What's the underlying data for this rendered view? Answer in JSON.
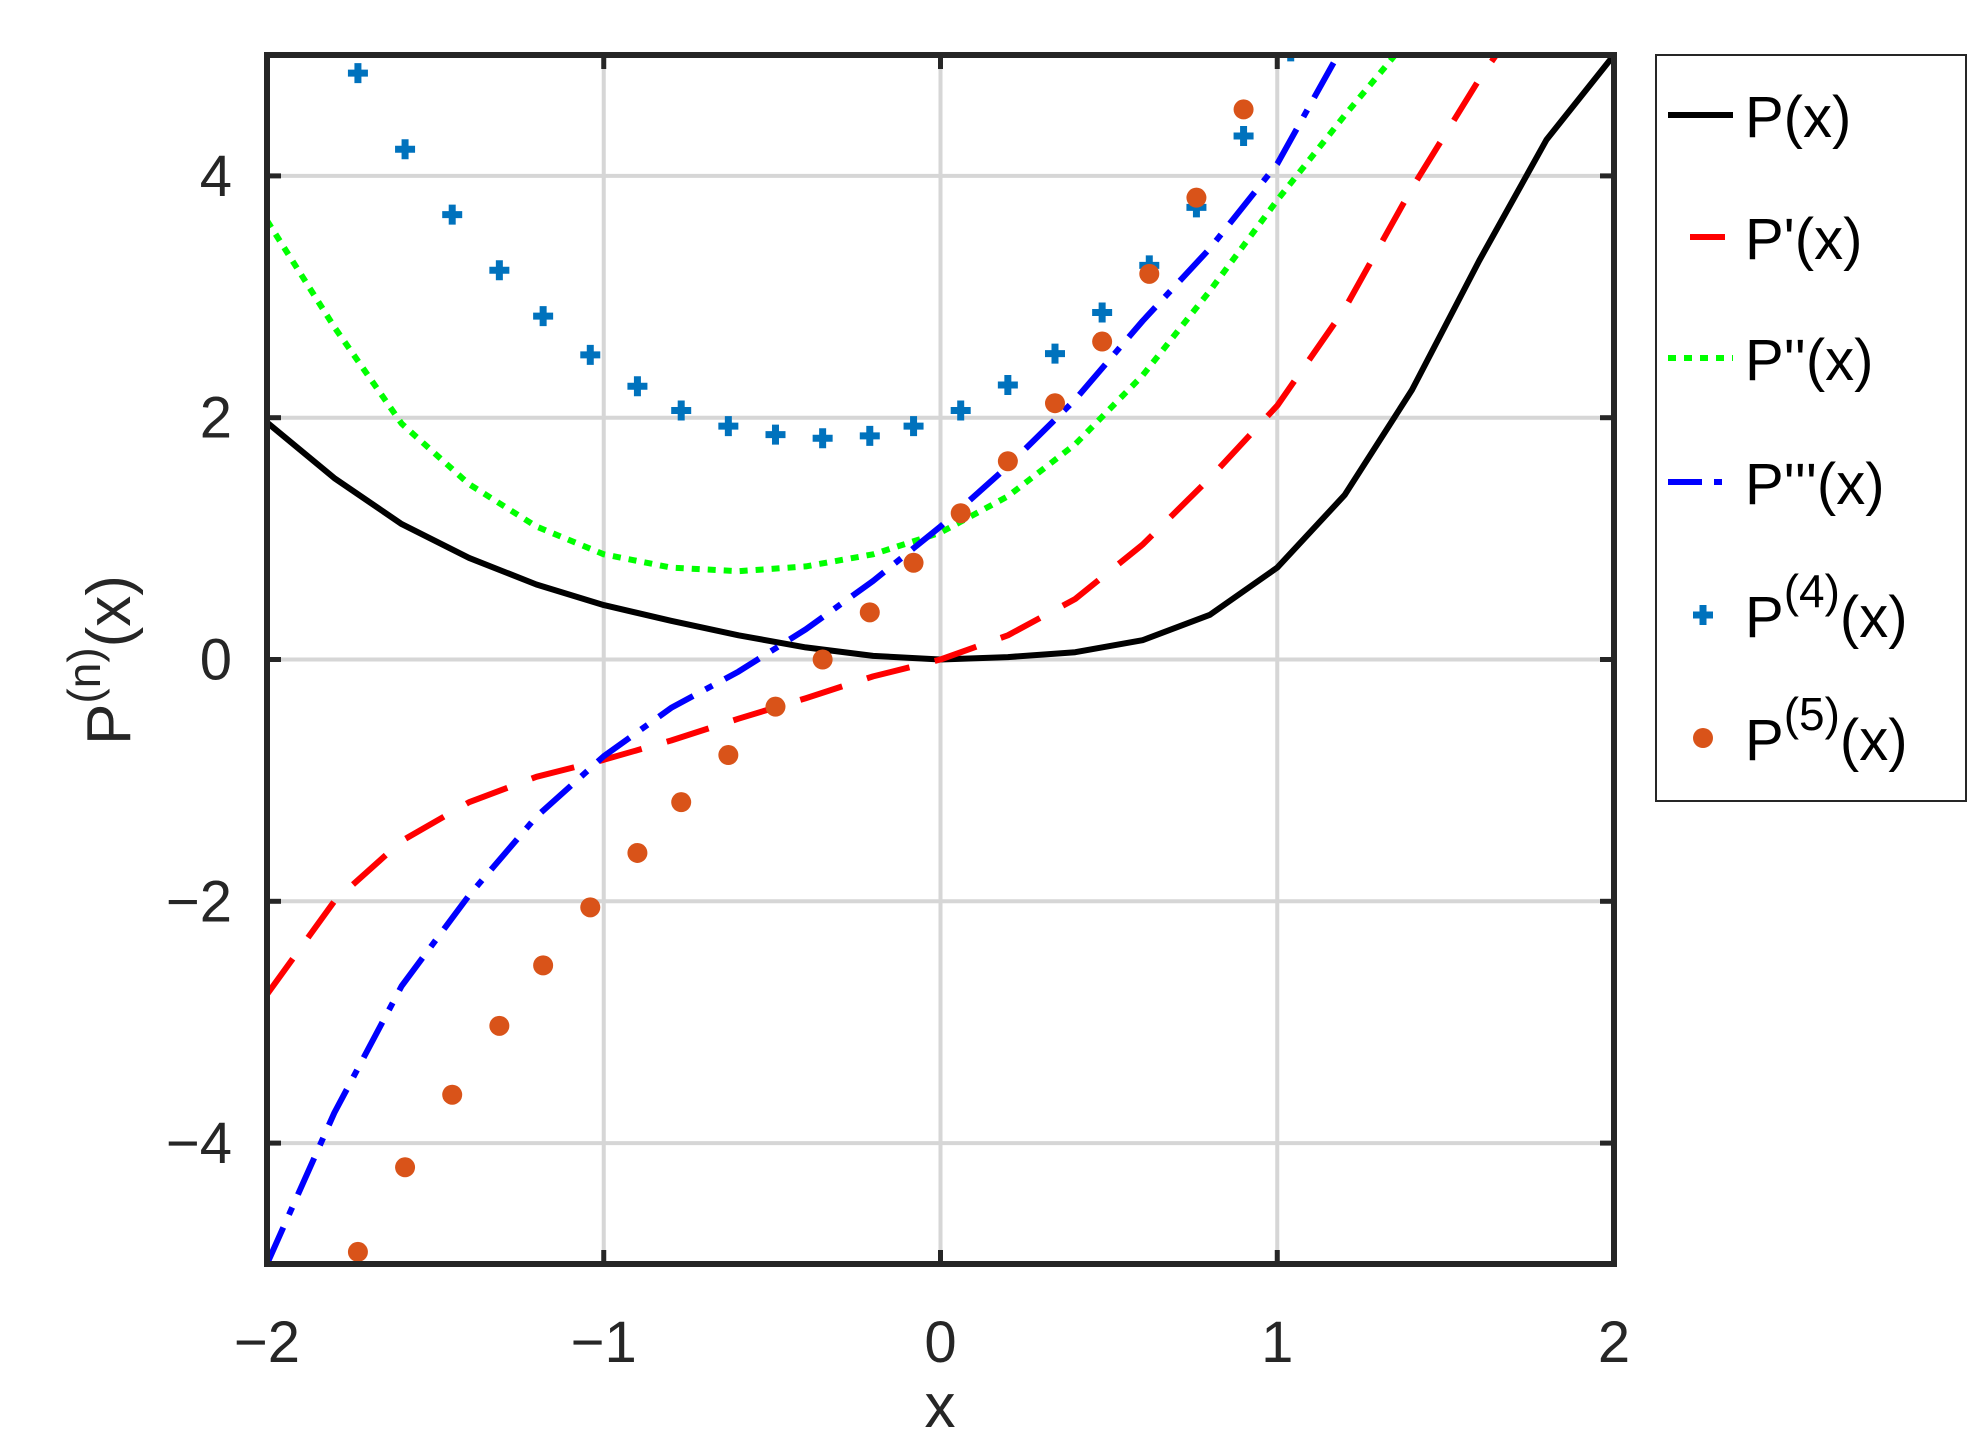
{
  "chart_data": {
    "type": "line",
    "title": "",
    "xlabel": "x",
    "ylabel": {
      "base": "P",
      "sup": "(n)",
      "tail": "(x)"
    },
    "xlim": [
      -2,
      2
    ],
    "ylim": [
      -5,
      5
    ],
    "xticks": [
      -2,
      -1,
      0,
      1,
      2
    ],
    "yticks": [
      -4,
      -2,
      0,
      2,
      4
    ],
    "xtick_labels": [
      "−2",
      "−1",
      "0",
      "1",
      "2"
    ],
    "ytick_labels": [
      "−4",
      "−2",
      "0",
      "2",
      "4"
    ],
    "grid": true,
    "legend_position": "outside-right",
    "series": [
      {
        "name": "P(x)",
        "color": "#000000",
        "style": "solid",
        "marker": "none",
        "x": [
          -2,
          -1.8,
          -1.6,
          -1.4,
          -1.2,
          -1,
          -0.8,
          -0.6,
          -0.4,
          -0.2,
          0,
          0.2,
          0.4,
          0.6,
          0.8,
          1,
          1.2,
          1.4,
          1.6,
          1.8,
          2
        ],
        "y": [
          1.96,
          1.5,
          1.12,
          0.84,
          0.62,
          0.45,
          0.32,
          0.2,
          0.1,
          0.03,
          0,
          0.02,
          0.06,
          0.16,
          0.37,
          0.76,
          1.36,
          2.23,
          3.3,
          4.3,
          5
        ]
      },
      {
        "name": "P'(x)",
        "color": "#ff0000",
        "style": "dashed",
        "marker": "none",
        "x": [
          -2,
          -1.8,
          -1.6,
          -1.4,
          -1.2,
          -1,
          -0.8,
          -0.6,
          -0.4,
          -0.2,
          0,
          0.2,
          0.4,
          0.6,
          0.8,
          1,
          1.2,
          1.4,
          1.6,
          1.65
        ],
        "y": [
          -2.77,
          -2.0,
          -1.5,
          -1.18,
          -0.97,
          -0.83,
          -0.67,
          -0.49,
          -0.32,
          -0.14,
          0,
          0.2,
          0.5,
          0.95,
          1.5,
          2.1,
          2.9,
          3.9,
          4.8,
          5
        ]
      },
      {
        "name": "P''(x)",
        "color": "#00ff00",
        "style": "dotted",
        "marker": "none",
        "x": [
          -2,
          -1.8,
          -1.6,
          -1.4,
          -1.2,
          -1,
          -0.8,
          -0.6,
          -0.4,
          -0.2,
          0,
          0.2,
          0.4,
          0.6,
          0.8,
          1,
          1.2,
          1.35
        ],
        "y": [
          3.63,
          2.75,
          1.95,
          1.45,
          1.1,
          0.87,
          0.76,
          0.73,
          0.77,
          0.87,
          1.05,
          1.35,
          1.78,
          2.35,
          3.05,
          3.8,
          4.5,
          5
        ]
      },
      {
        "name": "P'''(x)",
        "color": "#0000ff",
        "style": "dashdot",
        "marker": "none",
        "x": [
          -2,
          -1.8,
          -1.6,
          -1.4,
          -1.2,
          -1,
          -0.8,
          -0.6,
          -0.4,
          -0.2,
          0,
          0.2,
          0.4,
          0.6,
          0.8,
          1,
          1.18
        ],
        "y": [
          -5,
          -3.75,
          -2.7,
          -1.95,
          -1.3,
          -0.8,
          -0.4,
          -0.1,
          0.25,
          0.65,
          1.1,
          1.6,
          2.15,
          2.8,
          3.4,
          4.1,
          5
        ]
      },
      {
        "name": "P(4)(x)",
        "label": {
          "base": "P",
          "sup": "(4)",
          "tail": "(x)"
        },
        "color": "#0072bd",
        "style": "none",
        "marker": "plus",
        "x": [
          -1.73,
          -1.59,
          -1.45,
          -1.31,
          -1.18,
          -1.04,
          -0.9,
          -0.77,
          -0.63,
          -0.49,
          -0.35,
          -0.21,
          -0.08,
          0.06,
          0.2,
          0.34,
          0.48,
          0.62,
          0.76,
          0.9,
          1.04
        ],
        "y": [
          4.85,
          4.22,
          3.68,
          3.22,
          2.84,
          2.52,
          2.26,
          2.06,
          1.93,
          1.86,
          1.83,
          1.85,
          1.93,
          2.06,
          2.27,
          2.53,
          2.87,
          3.26,
          3.74,
          4.33,
          5.03
        ]
      },
      {
        "name": "P(5)(x)",
        "label": {
          "base": "P",
          "sup": "(5)",
          "tail": "(x)"
        },
        "color": "#d95319",
        "style": "none",
        "marker": "dot",
        "x": [
          -1.73,
          -1.59,
          -1.45,
          -1.31,
          -1.18,
          -1.04,
          -0.9,
          -0.77,
          -0.63,
          -0.49,
          -0.35,
          -0.21,
          -0.08,
          0.06,
          0.2,
          0.34,
          0.48,
          0.62,
          0.76,
          0.9
        ],
        "y": [
          -4.9,
          -4.2,
          -3.6,
          -3.03,
          -2.53,
          -2.05,
          -1.6,
          -1.18,
          -0.79,
          -0.39,
          0,
          0.39,
          0.8,
          1.21,
          1.64,
          2.12,
          2.63,
          3.19,
          3.82,
          4.55
        ]
      }
    ]
  }
}
